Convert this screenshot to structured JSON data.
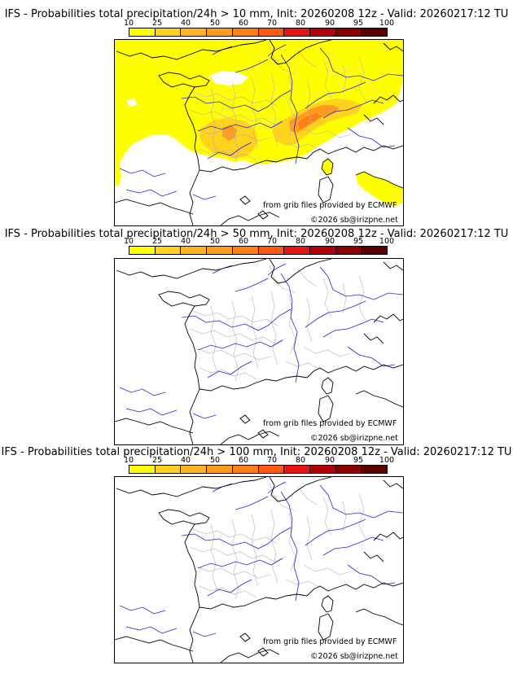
{
  "scale": {
    "labels": [
      "10",
      "25",
      "40",
      "50",
      "60",
      "70",
      "80",
      "90",
      "95",
      "100"
    ],
    "colors": [
      "#ffff00",
      "#ffd21e",
      "#ffb424",
      "#ff9b1e",
      "#ff7f17",
      "#ff5a14",
      "#e61414",
      "#b4000a",
      "#8c0000",
      "#5a0000"
    ]
  },
  "panels": [
    {
      "title": "IFS - Probabilities total precipitation/24h > 10 mm, Init: 20260208 12z - Valid: 20260217:12 TU"
    },
    {
      "title": "IFS - Probabilities total precipitation/24h > 50 mm, Init: 20260208 12z - Valid: 20260217:12 TU"
    },
    {
      "title": "IFS - Probabilities total precipitation/24h > 100 mm, Init: 20260208 12z - Valid: 20260217:12 TU"
    }
  ],
  "credit_source": "from grib files provided by ECMWF",
  "credit_copyright": "©2026 sb@irizpne.net",
  "colors": {
    "coast": "#000000",
    "rivers": "#2323d2",
    "borders": "#b4b4b4"
  }
}
